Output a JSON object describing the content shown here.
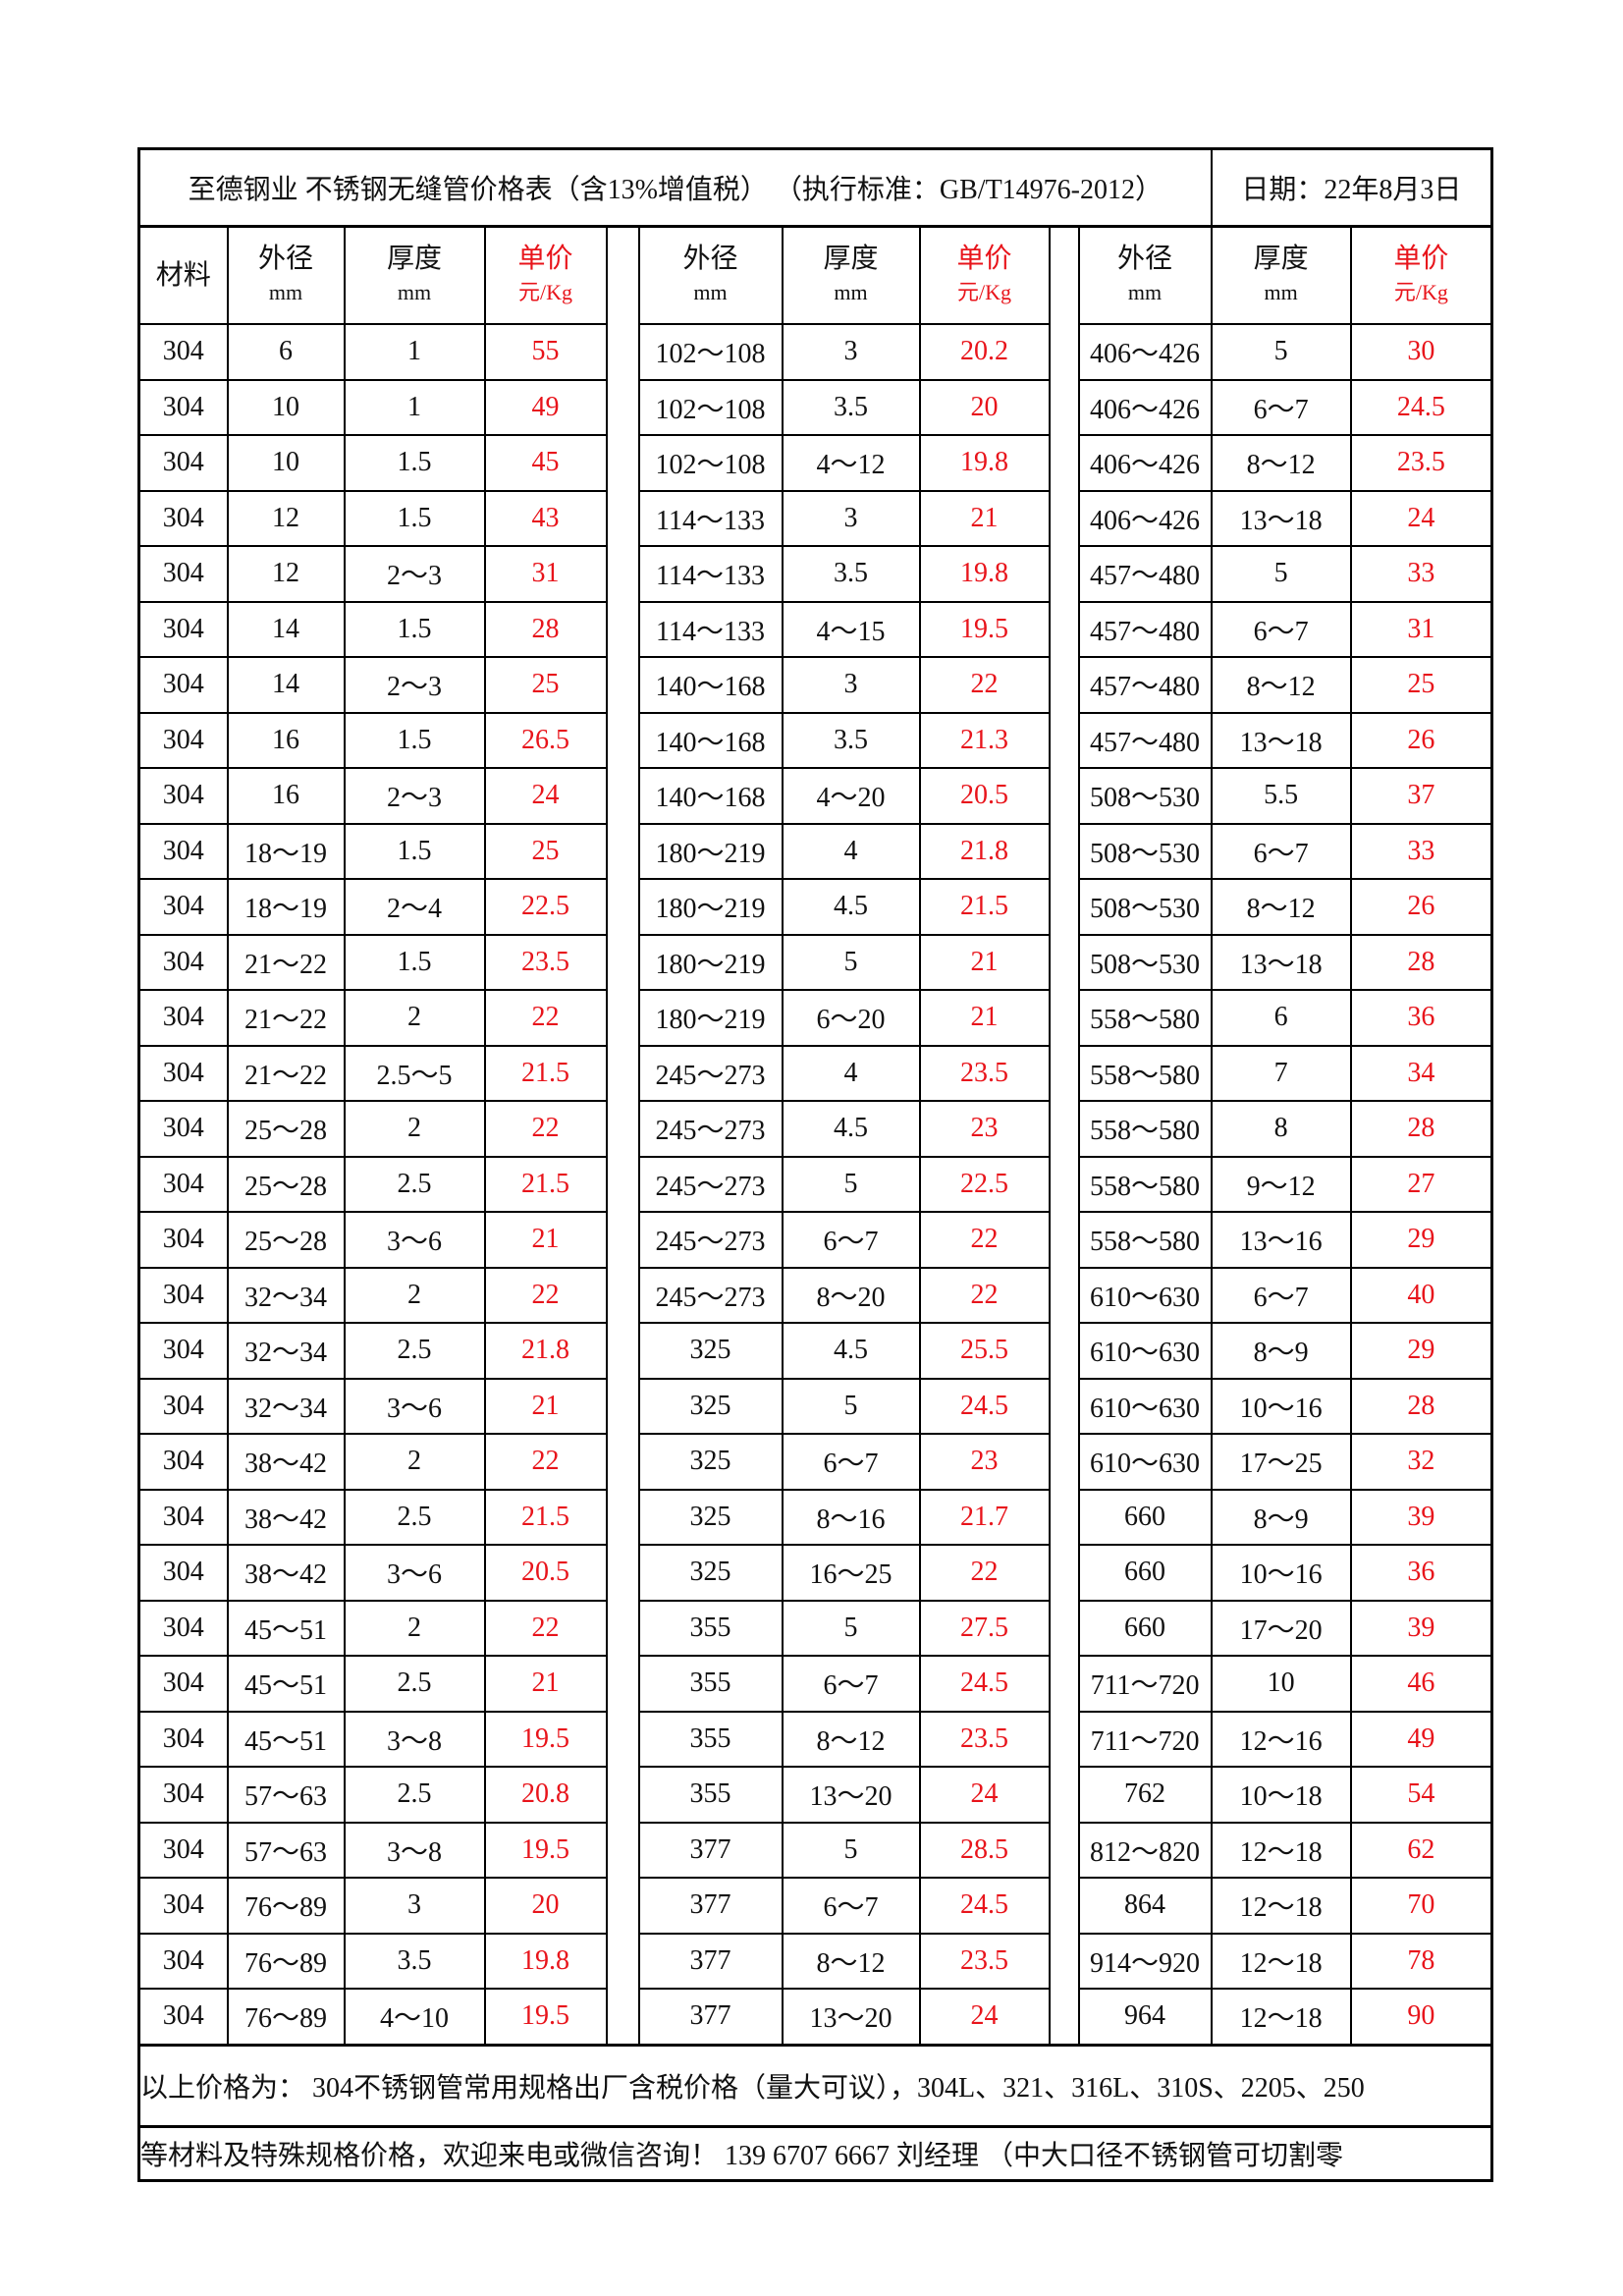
{
  "title": "至德钢业 不锈钢无缝管价格表（含13%增值税） （执行标准：GB/T14976-2012）",
  "date": "日期：22年8月3日",
  "headers": {
    "material": "材料",
    "od": "外径",
    "od_unit": "mm",
    "wall": "厚度",
    "wall_unit": "mm",
    "price": "单价",
    "price_unit": "元/Kg"
  },
  "colors": {
    "price": "#e8141b",
    "title": "#e8141b"
  },
  "rows": [
    [
      "304",
      "6",
      "1",
      "55",
      "102～108",
      "3",
      "20.2",
      "406～426",
      "5",
      "30"
    ],
    [
      "304",
      "10",
      "1",
      "49",
      "102～108",
      "3.5",
      "20",
      "406～426",
      "6～7",
      "24.5"
    ],
    [
      "304",
      "10",
      "1.5",
      "45",
      "102～108",
      "4～12",
      "19.8",
      "406～426",
      "8～12",
      "23.5"
    ],
    [
      "304",
      "12",
      "1.5",
      "43",
      "114～133",
      "3",
      "21",
      "406～426",
      "13～18",
      "24"
    ],
    [
      "304",
      "12",
      "2～3",
      "31",
      "114～133",
      "3.5",
      "19.8",
      "457～480",
      "5",
      "33"
    ],
    [
      "304",
      "14",
      "1.5",
      "28",
      "114～133",
      "4～15",
      "19.5",
      "457～480",
      "6～7",
      "31"
    ],
    [
      "304",
      "14",
      "2～3",
      "25",
      "140～168",
      "3",
      "22",
      "457～480",
      "8～12",
      "25"
    ],
    [
      "304",
      "16",
      "1.5",
      "26.5",
      "140～168",
      "3.5",
      "21.3",
      "457～480",
      "13～18",
      "26"
    ],
    [
      "304",
      "16",
      "2～3",
      "24",
      "140～168",
      "4～20",
      "20.5",
      "508～530",
      "5.5",
      "37"
    ],
    [
      "304",
      "18～19",
      "1.5",
      "25",
      "180～219",
      "4",
      "21.8",
      "508～530",
      "6～7",
      "33"
    ],
    [
      "304",
      "18～19",
      "2～4",
      "22.5",
      "180～219",
      "4.5",
      "21.5",
      "508～530",
      "8～12",
      "26"
    ],
    [
      "304",
      "21～22",
      "1.5",
      "23.5",
      "180～219",
      "5",
      "21",
      "508～530",
      "13～18",
      "28"
    ],
    [
      "304",
      "21～22",
      "2",
      "22",
      "180～219",
      "6～20",
      "21",
      "558～580",
      "6",
      "36"
    ],
    [
      "304",
      "21～22",
      "2.5～5",
      "21.5",
      "245～273",
      "4",
      "23.5",
      "558～580",
      "7",
      "34"
    ],
    [
      "304",
      "25～28",
      "2",
      "22",
      "245～273",
      "4.5",
      "23",
      "558～580",
      "8",
      "28"
    ],
    [
      "304",
      "25～28",
      "2.5",
      "21.5",
      "245～273",
      "5",
      "22.5",
      "558～580",
      "9～12",
      "27"
    ],
    [
      "304",
      "25～28",
      "3～6",
      "21",
      "245～273",
      "6～7",
      "22",
      "558～580",
      "13～16",
      "29"
    ],
    [
      "304",
      "32～34",
      "2",
      "22",
      "245～273",
      "8～20",
      "22",
      "610～630",
      "6～7",
      "40"
    ],
    [
      "304",
      "32～34",
      "2.5",
      "21.8",
      "325",
      "4.5",
      "25.5",
      "610～630",
      "8～9",
      "29"
    ],
    [
      "304",
      "32～34",
      "3～6",
      "21",
      "325",
      "5",
      "24.5",
      "610～630",
      "10～16",
      "28"
    ],
    [
      "304",
      "38～42",
      "2",
      "22",
      "325",
      "6～7",
      "23",
      "610～630",
      "17～25",
      "32"
    ],
    [
      "304",
      "38～42",
      "2.5",
      "21.5",
      "325",
      "8～16",
      "21.7",
      "660",
      "8～9",
      "39"
    ],
    [
      "304",
      "38～42",
      "3～6",
      "20.5",
      "325",
      "16～25",
      "22",
      "660",
      "10～16",
      "36"
    ],
    [
      "304",
      "45～51",
      "2",
      "22",
      "355",
      "5",
      "27.5",
      "660",
      "17～20",
      "39"
    ],
    [
      "304",
      "45～51",
      "2.5",
      "21",
      "355",
      "6～7",
      "24.5",
      "711～720",
      "10",
      "46"
    ],
    [
      "304",
      "45～51",
      "3～8",
      "19.5",
      "355",
      "8～12",
      "23.5",
      "711～720",
      "12～16",
      "49"
    ],
    [
      "304",
      "57～63",
      "2.5",
      "20.8",
      "355",
      "13～20",
      "24",
      "762",
      "10～18",
      "54"
    ],
    [
      "304",
      "57～63",
      "3～8",
      "19.5",
      "377",
      "5",
      "28.5",
      "812～820",
      "12～18",
      "62"
    ],
    [
      "304",
      "76～89",
      "3",
      "20",
      "377",
      "6～7",
      "24.5",
      "864",
      "12～18",
      "70"
    ],
    [
      "304",
      "76～89",
      "3.5",
      "19.8",
      "377",
      "8～12",
      "23.5",
      "914～920",
      "12～18",
      "78"
    ],
    [
      "304",
      "76～89",
      "4～10",
      "19.5",
      "377",
      "13～20",
      "24",
      "964",
      "12～18",
      "90"
    ]
  ],
  "footer": {
    "line1": "以上价格为： 304不锈钢管常用规格出厂含税价格（量大可议），304L、321、316L、310S、2205、250",
    "line2": "等材料及特殊规格价格，欢迎来电或微信咨询！ 139 6707 6667 刘经理 （中大口径不锈钢管可切割零"
  }
}
